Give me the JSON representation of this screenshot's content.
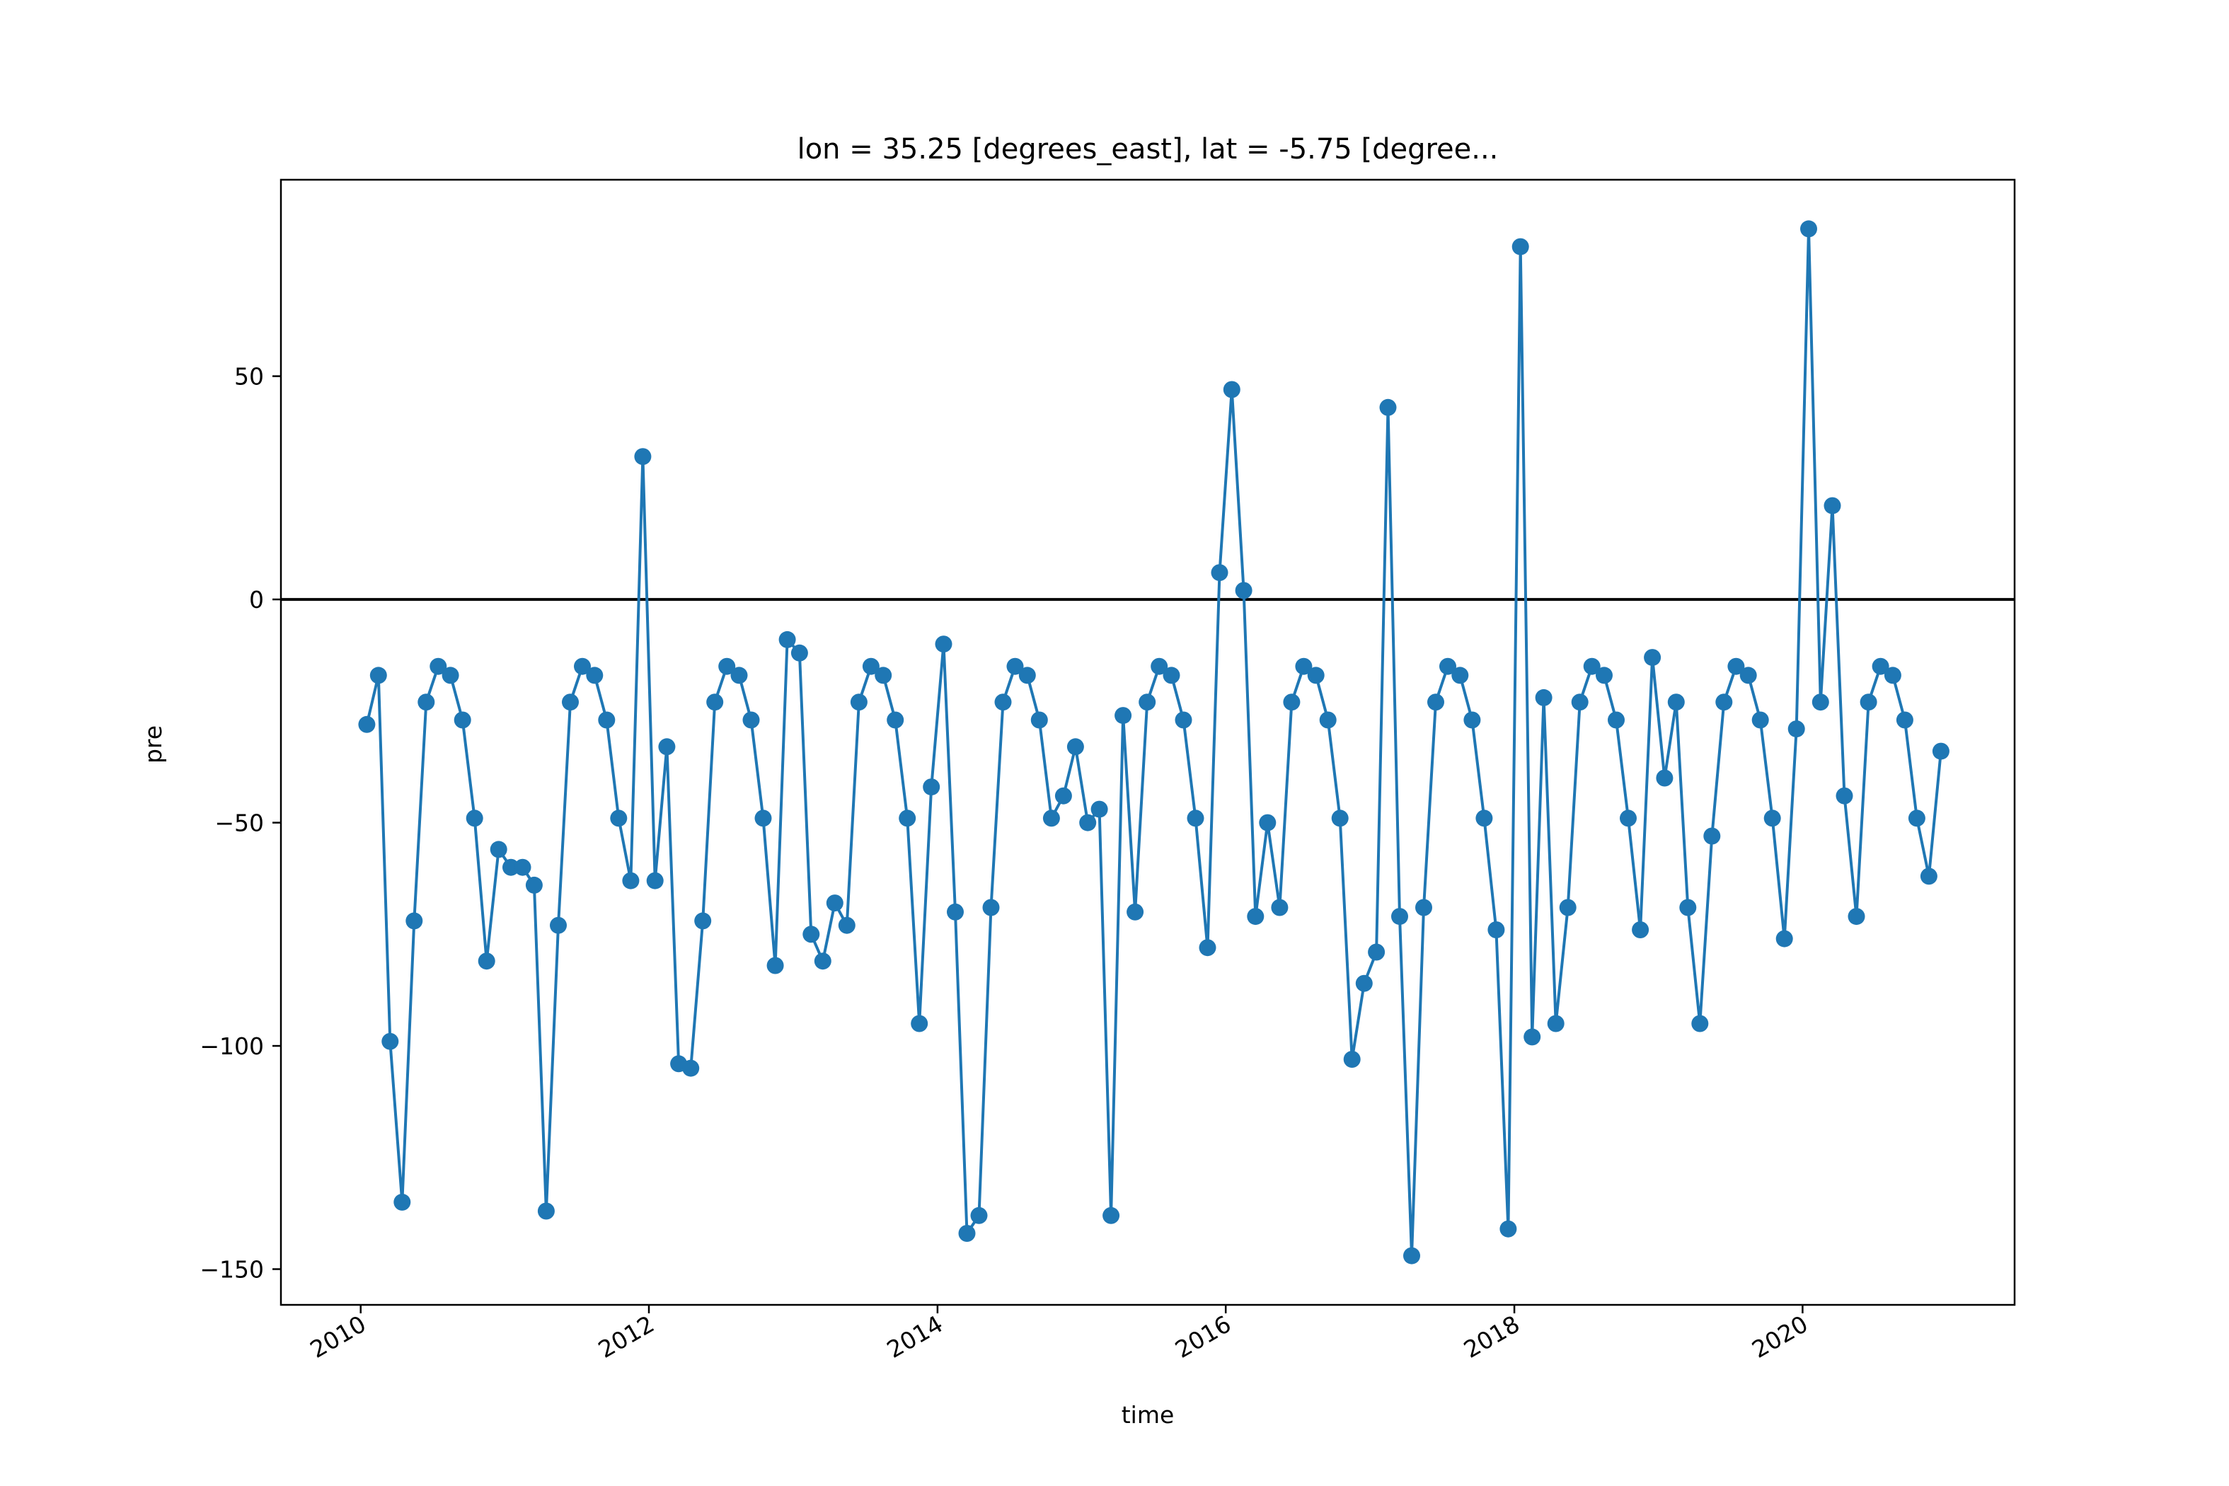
{
  "chart_data": {
    "type": "line",
    "title": "lon = 35.25 [degrees_east], lat = -5.75 [degree...",
    "xlabel": "time",
    "ylabel": "pre",
    "xlim": [
      "2009-06-13",
      "2021-06-21"
    ],
    "ylim": [
      -158,
      94
    ],
    "x_ticks": [
      "2010",
      "2012",
      "2014",
      "2016",
      "2018",
      "2020"
    ],
    "y_ticks": [
      50,
      0,
      -50,
      -100,
      -150
    ],
    "y_tick_labels": [
      "50",
      "0",
      "−50",
      "−100",
      "−150"
    ],
    "grid": false,
    "reference_line": {
      "y": 0,
      "color": "#000000"
    },
    "series_color": "#1f77b4",
    "x": [
      "2010-01",
      "2010-02",
      "2010-03",
      "2010-04",
      "2010-05",
      "2010-06",
      "2010-07",
      "2010-08",
      "2010-09",
      "2010-10",
      "2010-11",
      "2010-12",
      "2011-01",
      "2011-02",
      "2011-03",
      "2011-04",
      "2011-05",
      "2011-06",
      "2011-07",
      "2011-08",
      "2011-09",
      "2011-10",
      "2011-11",
      "2011-12",
      "2012-01",
      "2012-02",
      "2012-03",
      "2012-04",
      "2012-05",
      "2012-06",
      "2012-07",
      "2012-08",
      "2012-09",
      "2012-10",
      "2012-11",
      "2012-12",
      "2013-01",
      "2013-02",
      "2013-03",
      "2013-04",
      "2013-05",
      "2013-06",
      "2013-07",
      "2013-08",
      "2013-09",
      "2013-10",
      "2013-11",
      "2013-12",
      "2014-01",
      "2014-02",
      "2014-03",
      "2014-04",
      "2014-05",
      "2014-06",
      "2014-07",
      "2014-08",
      "2014-09",
      "2014-10",
      "2014-11",
      "2014-12",
      "2015-01",
      "2015-02",
      "2015-03",
      "2015-04",
      "2015-05",
      "2015-06",
      "2015-07",
      "2015-08",
      "2015-09",
      "2015-10",
      "2015-11",
      "2015-12",
      "2016-01",
      "2016-02",
      "2016-03",
      "2016-04",
      "2016-05",
      "2016-06",
      "2016-07",
      "2016-08",
      "2016-09",
      "2016-10",
      "2016-11",
      "2016-12",
      "2017-01",
      "2017-02",
      "2017-03",
      "2017-04",
      "2017-05",
      "2017-06",
      "2017-07",
      "2017-08",
      "2017-09",
      "2017-10",
      "2017-11",
      "2017-12",
      "2018-01",
      "2018-02",
      "2018-03",
      "2018-04",
      "2018-05",
      "2018-06",
      "2018-07",
      "2018-08",
      "2018-09",
      "2018-10",
      "2018-11",
      "2018-12",
      "2019-01",
      "2019-02",
      "2019-03",
      "2019-04",
      "2019-05",
      "2019-06",
      "2019-07",
      "2019-08",
      "2019-09",
      "2019-10",
      "2019-11",
      "2019-12",
      "2020-01",
      "2020-02",
      "2020-03",
      "2020-04",
      "2020-05",
      "2020-06",
      "2020-07",
      "2020-08",
      "2020-09",
      "2020-10",
      "2020-11",
      "2020-12"
    ],
    "y": [
      -28,
      -17,
      -99,
      -135,
      -72,
      -23,
      -15,
      -17,
      -27,
      -49,
      -81,
      -56,
      -60,
      -60,
      -64,
      -137,
      -73,
      -23,
      -15,
      -17,
      -27,
      -49,
      -63,
      32,
      -63,
      -33,
      -104,
      -105,
      -72,
      -23,
      -15,
      -17,
      -27,
      -49,
      -82,
      -9,
      -12,
      -75,
      -81,
      -68,
      -73,
      -23,
      -15,
      -17,
      -27,
      -49,
      -95,
      -42,
      -10,
      -70,
      -142,
      -138,
      -69,
      -23,
      -15,
      -17,
      -27,
      -49,
      -44,
      -33,
      -50,
      -47,
      -138,
      -26,
      -70,
      -23,
      -15,
      -17,
      -27,
      -49,
      -78,
      6,
      47,
      2,
      -71,
      -50,
      -69,
      -23,
      -15,
      -17,
      -27,
      -49,
      -103,
      -86,
      -79,
      43,
      -71,
      -147,
      -69,
      -23,
      -15,
      -17,
      -27,
      -49,
      -74,
      -141,
      79,
      -98,
      -22,
      -95,
      -69,
      -23,
      -15,
      -17,
      -27,
      -49,
      -74,
      -13,
      -40,
      -23,
      -69,
      -95,
      -53,
      -23,
      -15,
      -17,
      -27,
      -49,
      -76,
      -29,
      83,
      -23,
      21,
      -44,
      -71,
      -23,
      -15,
      -17,
      -27,
      -49,
      -62,
      -34
    ]
  }
}
